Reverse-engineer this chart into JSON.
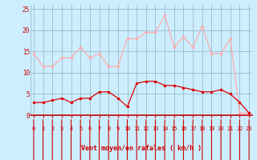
{
  "x": [
    0,
    1,
    2,
    3,
    4,
    5,
    6,
    7,
    8,
    9,
    10,
    11,
    12,
    13,
    14,
    15,
    16,
    17,
    18,
    19,
    20,
    21,
    22,
    23
  ],
  "wind_avg": [
    3,
    3,
    3.5,
    4,
    3,
    4,
    4,
    5.5,
    5.5,
    4,
    2,
    7.5,
    8,
    8,
    7,
    7,
    6.5,
    6,
    5.5,
    5.5,
    6,
    5,
    3,
    0.5
  ],
  "wind_gust": [
    14.5,
    11.5,
    11.5,
    13.5,
    13.5,
    16,
    13.5,
    14.5,
    11.5,
    11.5,
    18,
    18,
    19.5,
    19.5,
    23.5,
    16,
    18.5,
    16,
    21,
    14.5,
    14.5,
    18,
    0.5,
    0.5
  ],
  "avg_color": "#dd0000",
  "gust_color": "#ffaaaa",
  "bg_color": "#cceeff",
  "grid_color": "#99bbcc",
  "text_color": "#cc0000",
  "xlabel": "Vent moyen/en rafales ( km/h )",
  "ylabel_ticks": [
    0,
    5,
    10,
    15,
    20,
    25
  ],
  "xlabel_ticks": [
    0,
    1,
    2,
    3,
    4,
    5,
    6,
    7,
    8,
    9,
    10,
    11,
    12,
    13,
    14,
    15,
    16,
    17,
    18,
    19,
    20,
    21,
    22,
    23
  ],
  "ylim": [
    0,
    26
  ],
  "xlim": [
    -0.3,
    23.3
  ]
}
